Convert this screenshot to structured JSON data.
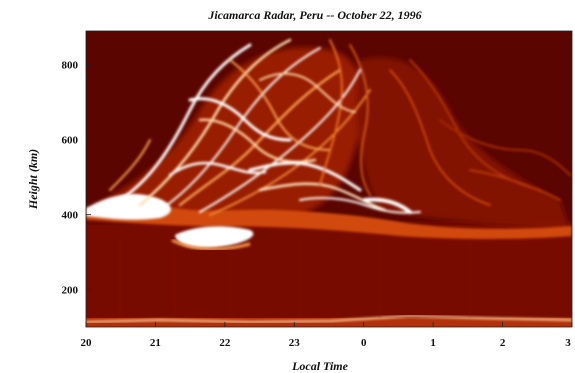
{
  "chart_data": {
    "type": "heatmap",
    "title": "Jicamarca Radar, Peru -- October 22, 1996",
    "xlabel": "Local Time",
    "ylabel": "Height (km)",
    "x_ticks": [
      {
        "value": 0,
        "label": "20"
      },
      {
        "value": 1,
        "label": "21"
      },
      {
        "value": 2,
        "label": "22"
      },
      {
        "value": 3,
        "label": "23"
      },
      {
        "value": 4,
        "label": "0"
      },
      {
        "value": 5,
        "label": "1"
      },
      {
        "value": 6,
        "label": "2"
      },
      {
        "value": 7,
        "label": "3"
      }
    ],
    "y_ticks": [
      {
        "value": 200,
        "label": "200"
      },
      {
        "value": 400,
        "label": "400"
      },
      {
        "value": 600,
        "label": "600"
      },
      {
        "value": 800,
        "label": "800"
      }
    ],
    "xlim": [
      0,
      7
    ],
    "ylim": [
      100,
      890
    ],
    "colormap": [
      "#5a0000",
      "#8b0b00",
      "#c0300a",
      "#e86a1a",
      "#f7b060",
      "#ffffff"
    ],
    "background_color": "#6a0800"
  }
}
